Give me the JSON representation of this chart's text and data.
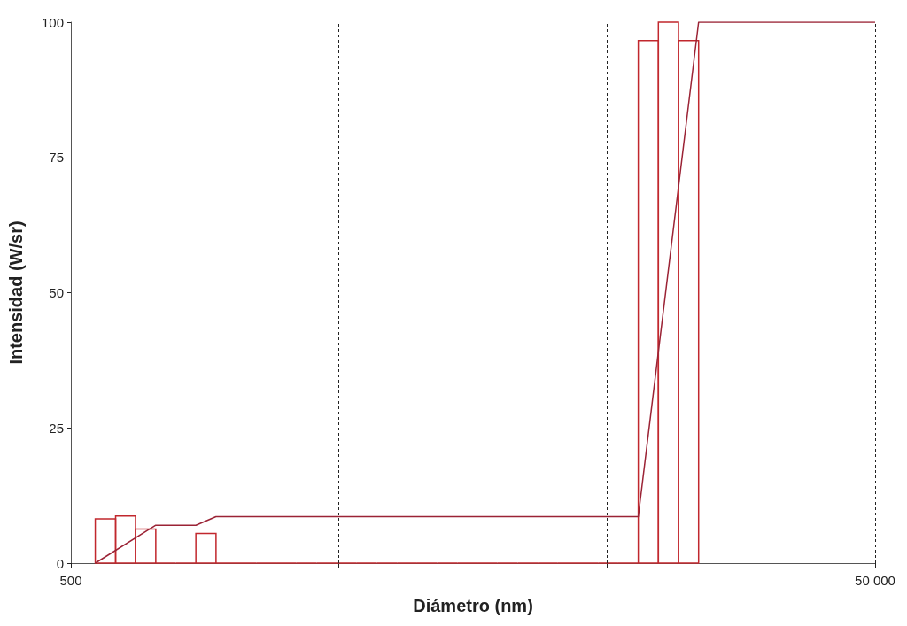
{
  "chart_data": {
    "type": "histogram",
    "xlabel": "Diámetro (nm)",
    "ylabel": "Intensidad (W/sr)",
    "log": "x",
    "grid": "x",
    "xlim": [
      500,
      50000
    ],
    "xticks": [
      {
        "value": 500,
        "label": "500"
      },
      {
        "value": 2321,
        "label": null
      },
      {
        "value": 10772,
        "label": null
      },
      {
        "value": 50000,
        "label": "50 000"
      }
    ],
    "ylim": [
      0,
      100
    ],
    "yticks": [
      0,
      25,
      50,
      75,
      100
    ],
    "series": [
      {
        "color": "#c1272d",
        "bins": [
          575,
          646,
          724,
          813,
          912,
          1023,
          1148,
          1288,
          1445,
          1622,
          1820,
          2042,
          2291,
          2570,
          2884,
          3236,
          3631,
          4074,
          4571,
          5129,
          5754,
          6457,
          7244,
          8128,
          9120,
          10233,
          11482,
          12882,
          14454,
          16218,
          18197
        ],
        "values": [
          8.2,
          8.7,
          6.3,
          0,
          0,
          5.5,
          0,
          0,
          0,
          0,
          0,
          0,
          0,
          0,
          0,
          0,
          0,
          0,
          0,
          0,
          0,
          0,
          0,
          0,
          0,
          0,
          0,
          96.6,
          100,
          96.6
        ]
      },
      {
        "type": "line",
        "color": "#9b2335",
        "x": [
          575,
          813,
          1023,
          1148,
          12882,
          18197,
          50000
        ],
        "values": [
          0,
          7,
          7,
          8.6,
          8.6,
          100,
          100
        ]
      }
    ]
  }
}
